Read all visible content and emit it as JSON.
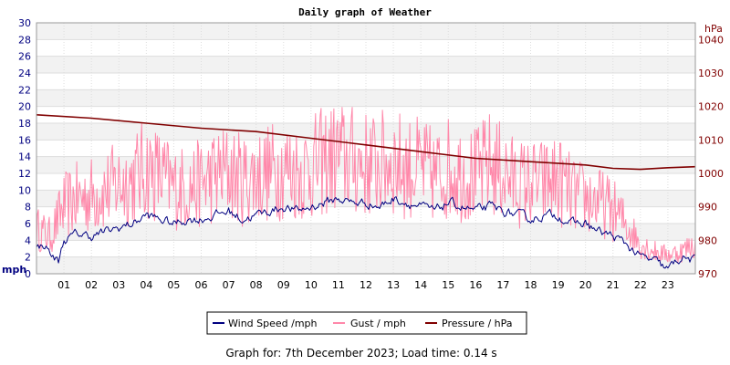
{
  "chart_data": {
    "type": "line",
    "title": "Daily graph of Weather",
    "left_axis": {
      "unit_label": "mph",
      "min": 0,
      "max": 30,
      "ticks": [
        0,
        2,
        4,
        6,
        8,
        10,
        12,
        14,
        16,
        18,
        20,
        22,
        24,
        26,
        28,
        30
      ],
      "color": "#000080"
    },
    "right_axis": {
      "unit_label": "hPa",
      "min": 970,
      "max": 1045,
      "ticks": [
        970,
        980,
        990,
        1000,
        1010,
        1020,
        1030,
        1040
      ],
      "color": "#800000"
    },
    "x_axis": {
      "min": 0,
      "max": 24,
      "tick_labels": [
        "01",
        "02",
        "03",
        "04",
        "05",
        "06",
        "07",
        "08",
        "09",
        "10",
        "11",
        "12",
        "13",
        "14",
        "15",
        "16",
        "17",
        "18",
        "19",
        "20",
        "21",
        "22",
        "23"
      ]
    },
    "grid": true,
    "legend_position": "bottom",
    "series": [
      {
        "name": "Wind Speed /mph",
        "axis": "left",
        "color": "#000080",
        "points": [
          [
            0,
            3.0
          ],
          [
            0.3,
            3.5
          ],
          [
            0.6,
            2.0
          ],
          [
            0.8,
            1.5
          ],
          [
            1.0,
            4.0
          ],
          [
            1.5,
            4.8
          ],
          [
            2.0,
            4.5
          ],
          [
            2.5,
            5.0
          ],
          [
            3.0,
            5.5
          ],
          [
            3.5,
            6.0
          ],
          [
            4.0,
            7.0
          ],
          [
            4.5,
            6.5
          ],
          [
            5.0,
            6.0
          ],
          [
            5.5,
            6.5
          ],
          [
            6.0,
            6.5
          ],
          [
            6.5,
            7.0
          ],
          [
            7.0,
            7.5
          ],
          [
            7.5,
            6.5
          ],
          [
            8.0,
            7.0
          ],
          [
            8.5,
            7.5
          ],
          [
            9.0,
            8.0
          ],
          [
            9.5,
            7.5
          ],
          [
            10.0,
            8.0
          ],
          [
            10.5,
            8.5
          ],
          [
            11.0,
            9.0
          ],
          [
            11.5,
            8.5
          ],
          [
            12.0,
            8.5
          ],
          [
            12.5,
            8.0
          ],
          [
            13.0,
            9.0
          ],
          [
            13.5,
            8.5
          ],
          [
            14.0,
            8.0
          ],
          [
            14.5,
            7.5
          ],
          [
            15.0,
            8.5
          ],
          [
            15.5,
            8.0
          ],
          [
            16.0,
            7.5
          ],
          [
            16.5,
            8.0
          ],
          [
            17.0,
            7.5
          ],
          [
            17.5,
            7.0
          ],
          [
            18.0,
            6.5
          ],
          [
            18.5,
            7.0
          ],
          [
            19.0,
            7.0
          ],
          [
            19.5,
            6.0
          ],
          [
            20.0,
            6.0
          ],
          [
            20.5,
            5.0
          ],
          [
            21.0,
            4.5
          ],
          [
            21.5,
            3.5
          ],
          [
            22.0,
            2.0
          ],
          [
            22.5,
            1.5
          ],
          [
            23.0,
            0.5
          ],
          [
            23.5,
            2.0
          ],
          [
            24.0,
            1.5
          ]
        ]
      },
      {
        "name": "Gust / mph",
        "axis": "left",
        "color": "#ff88aa",
        "points": [
          [
            0,
            6.0
          ],
          [
            0.5,
            5.0
          ],
          [
            1.0,
            9.0
          ],
          [
            1.5,
            10.0
          ],
          [
            2.0,
            10.5
          ],
          [
            2.5,
            11.0
          ],
          [
            3.0,
            12.0
          ],
          [
            3.5,
            12.5
          ],
          [
            4.0,
            14.0
          ],
          [
            4.5,
            13.0
          ],
          [
            5.0,
            11.5
          ],
          [
            5.5,
            11.5
          ],
          [
            6.0,
            12.0
          ],
          [
            6.5,
            13.0
          ],
          [
            7.0,
            13.5
          ],
          [
            7.5,
            12.5
          ],
          [
            8.0,
            13.0
          ],
          [
            8.5,
            13.5
          ],
          [
            9.0,
            14.0
          ],
          [
            9.5,
            13.5
          ],
          [
            10.0,
            14.0
          ],
          [
            10.5,
            15.0
          ],
          [
            11.0,
            15.5
          ],
          [
            11.5,
            15.0
          ],
          [
            12.0,
            14.5
          ],
          [
            12.5,
            14.5
          ],
          [
            13.0,
            15.0
          ],
          [
            13.5,
            14.0
          ],
          [
            14.0,
            14.0
          ],
          [
            14.5,
            13.0
          ],
          [
            15.0,
            14.0
          ],
          [
            15.5,
            13.5
          ],
          [
            16.0,
            13.0
          ],
          [
            16.5,
            14.5
          ],
          [
            17.0,
            13.5
          ],
          [
            17.5,
            12.0
          ],
          [
            18.0,
            12.0
          ],
          [
            18.5,
            12.0
          ],
          [
            19.0,
            12.5
          ],
          [
            19.5,
            10.5
          ],
          [
            20.0,
            10.0
          ],
          [
            20.5,
            9.5
          ],
          [
            21.0,
            8.5
          ],
          [
            21.5,
            6.5
          ],
          [
            22.0,
            4.0
          ],
          [
            22.5,
            3.0
          ],
          [
            23.0,
            2.5
          ],
          [
            23.5,
            3.0
          ],
          [
            24.0,
            4.0
          ]
        ]
      },
      {
        "name": "Pressure / hPa",
        "axis": "right",
        "color": "#800000",
        "points": [
          [
            0,
            1017.5
          ],
          [
            2,
            1016.5
          ],
          [
            4,
            1015.0
          ],
          [
            6,
            1013.5
          ],
          [
            8,
            1012.5
          ],
          [
            10,
            1010.5
          ],
          [
            12,
            1008.5
          ],
          [
            14,
            1006.5
          ],
          [
            16,
            1004.5
          ],
          [
            18,
            1003.5
          ],
          [
            20,
            1002.5
          ],
          [
            21,
            1001.5
          ],
          [
            22,
            1001.2
          ],
          [
            23,
            1001.7
          ],
          [
            24,
            1002.0
          ]
        ]
      }
    ]
  },
  "footer": "Graph for: 7th December 2023; Load time: 0.14 s"
}
